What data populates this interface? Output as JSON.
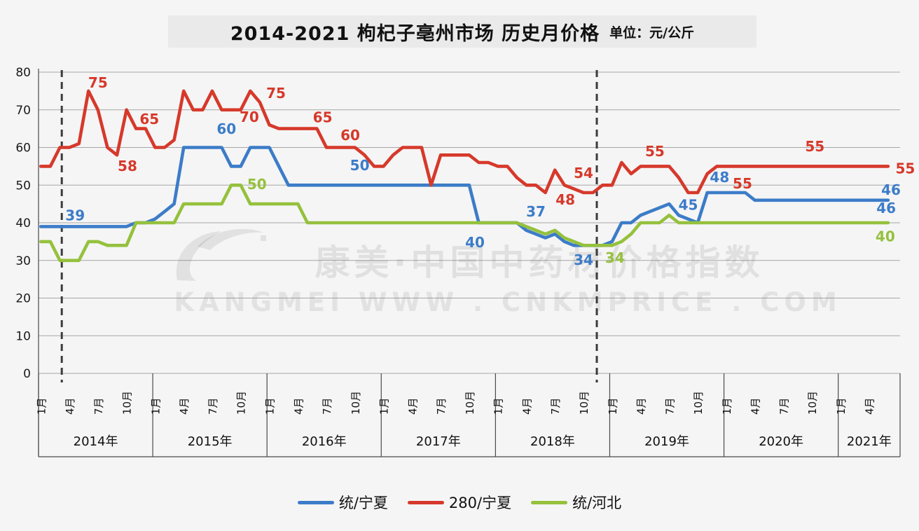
{
  "title": {
    "text": "2014-2021 枸杞子亳州市场 历史月价格",
    "unit": "单位：元/公斤"
  },
  "watermark": {
    "line1": "康美·中国中药材价格指数",
    "line2": "KANGMEI WWW . CNKMPRICE . COM"
  },
  "legend": [
    {
      "label": "统/宁夏",
      "color": "#3C7CC8"
    },
    {
      "label": "280/宁夏",
      "color": "#D6392B"
    },
    {
      "label": "统/河北",
      "color": "#95C13D"
    }
  ],
  "chart_data": {
    "type": "line",
    "title": "2014-2021 枸杞子亳州市场 历史月价格",
    "unit": "元/公斤",
    "grid": "horizontal",
    "legend_position": "bottom",
    "y_axis": {
      "min": 0,
      "max": 80,
      "step": 10
    },
    "x_axis": {
      "start": "2014-01",
      "end": "2021-06",
      "years": [
        {
          "label": "2014年",
          "months": [
            "1月",
            "4月",
            "7月",
            "10月"
          ]
        },
        {
          "label": "2015年",
          "months": [
            "1月",
            "4月",
            "7月",
            "10月"
          ]
        },
        {
          "label": "2016年",
          "months": [
            "1月",
            "4月",
            "7月",
            "10月"
          ]
        },
        {
          "label": "2017年",
          "months": [
            "1月",
            "4月",
            "7月",
            "10月"
          ]
        },
        {
          "label": "2018年",
          "months": [
            "1月",
            "4月",
            "7月",
            "10月"
          ]
        },
        {
          "label": "2019年",
          "months": [
            "1月",
            "4月",
            "7月",
            "10月"
          ]
        },
        {
          "label": "2020年",
          "months": [
            "1月",
            "4月",
            "7月",
            "10月"
          ]
        },
        {
          "label": "2021年",
          "months": [
            "1月",
            "4月"
          ]
        }
      ]
    },
    "reference_lines": [
      {
        "month_index": 2.2
      },
      {
        "month_index": 58.4
      }
    ],
    "series": [
      {
        "name": "统/宁夏",
        "color": "#3C7CC8",
        "values": [
          39,
          39,
          39,
          39,
          39,
          39,
          39,
          39,
          39,
          39,
          40,
          40,
          41,
          43,
          45,
          60,
          60,
          60,
          60,
          60,
          55,
          55,
          60,
          60,
          60,
          55,
          50,
          50,
          50,
          50,
          50,
          50,
          50,
          50,
          50,
          50,
          50,
          50,
          50,
          50,
          50,
          50,
          50,
          50,
          50,
          50,
          40,
          40,
          40,
          40,
          40,
          38,
          37,
          36,
          37,
          35,
          34,
          34,
          34,
          34,
          35,
          40,
          40,
          42,
          43,
          44,
          45,
          42,
          41,
          40,
          48,
          48,
          48,
          48,
          48,
          46,
          46,
          46,
          46,
          46,
          46,
          46,
          46,
          46,
          46,
          46,
          46,
          46,
          46,
          46
        ]
      },
      {
        "name": "280/宁夏",
        "color": "#D6392B",
        "values": [
          55,
          55,
          60,
          60,
          61,
          75,
          70,
          60,
          58,
          70,
          65,
          65,
          60,
          60,
          62,
          75,
          70,
          70,
          75,
          70,
          70,
          70,
          75,
          72,
          66,
          65,
          65,
          65,
          65,
          65,
          60,
          60,
          60,
          60,
          58,
          55,
          55,
          58,
          60,
          60,
          60,
          50,
          58,
          58,
          58,
          58,
          56,
          56,
          55,
          55,
          52,
          50,
          50,
          48,
          54,
          50,
          49,
          48,
          48,
          50,
          50,
          56,
          53,
          55,
          55,
          55,
          55,
          52,
          48,
          48,
          53,
          55,
          55,
          55,
          55,
          55,
          55,
          55,
          55,
          55,
          55,
          55,
          55,
          55,
          55,
          55,
          55,
          55,
          55,
          55
        ]
      },
      {
        "name": "统/河北",
        "color": "#95C13D",
        "values": [
          35,
          35,
          30,
          30,
          30,
          35,
          35,
          34,
          34,
          34,
          40,
          40,
          40,
          40,
          40,
          45,
          45,
          45,
          45,
          45,
          50,
          50,
          45,
          45,
          45,
          45,
          45,
          45,
          40,
          40,
          40,
          40,
          40,
          40,
          40,
          40,
          40,
          40,
          40,
          40,
          40,
          40,
          40,
          40,
          40,
          40,
          40,
          40,
          40,
          40,
          40,
          39,
          38,
          37,
          38,
          36,
          35,
          34,
          34,
          34,
          34,
          35,
          37,
          40,
          40,
          40,
          42,
          40,
          40,
          40,
          40,
          40,
          40,
          40,
          40,
          40,
          40,
          40,
          40,
          40,
          40,
          40,
          40,
          40,
          40,
          40,
          40,
          40,
          40,
          40
        ]
      }
    ],
    "point_labels": [
      {
        "text": "39",
        "m": 3.6,
        "v": 42.0,
        "color": "#3C7CC8"
      },
      {
        "text": "75",
        "m": 6.0,
        "v": 77.2,
        "color": "#D6392B"
      },
      {
        "text": "58",
        "m": 9.1,
        "v": 55.1,
        "color": "#D6392B"
      },
      {
        "text": "65",
        "m": 11.4,
        "v": 67.5,
        "color": "#D6392B"
      },
      {
        "text": "60",
        "m": 19.5,
        "v": 64.9,
        "color": "#3C7CC8"
      },
      {
        "text": "70",
        "m": 21.9,
        "v": 68.1,
        "color": "#D6392B"
      },
      {
        "text": "50",
        "m": 22.7,
        "v": 50.2,
        "color": "#95C13D"
      },
      {
        "text": "75",
        "m": 24.7,
        "v": 74.4,
        "color": "#D6392B"
      },
      {
        "text": "65",
        "m": 29.6,
        "v": 68.0,
        "color": "#D6392B"
      },
      {
        "text": "60",
        "m": 32.5,
        "v": 63.3,
        "color": "#D6392B"
      },
      {
        "text": "50",
        "m": 33.5,
        "v": 55.3,
        "color": "#3C7CC8"
      },
      {
        "text": "40",
        "m": 45.6,
        "v": 34.8,
        "color": "#3C7CC8"
      },
      {
        "text": "37",
        "m": 52.0,
        "v": 43.0,
        "color": "#3C7CC8"
      },
      {
        "text": "48",
        "m": 55.1,
        "v": 46.1,
        "color": "#D6392B"
      },
      {
        "text": "54",
        "m": 57.0,
        "v": 53.2,
        "color": "#D6392B"
      },
      {
        "text": "34",
        "m": 57.0,
        "v": 30.1,
        "color": "#3C7CC8"
      },
      {
        "text": "34",
        "m": 60.3,
        "v": 30.7,
        "color": "#95C13D"
      },
      {
        "text": "55",
        "m": 64.5,
        "v": 59.0,
        "color": "#D6392B"
      },
      {
        "text": "45",
        "m": 68.0,
        "v": 44.7,
        "color": "#3C7CC8"
      },
      {
        "text": "48",
        "m": 71.3,
        "v": 52.1,
        "color": "#3C7CC8"
      },
      {
        "text": "55",
        "m": 73.7,
        "v": 50.4,
        "color": "#D6392B"
      },
      {
        "text": "55",
        "m": 81.3,
        "v": 60.3,
        "color": "#D6392B"
      },
      {
        "text": "55",
        "m": 90.8,
        "v": 54.4,
        "color": "#D6392B"
      },
      {
        "text": "46",
        "m": 89.3,
        "v": 48.7,
        "color": "#3C7CC8"
      },
      {
        "text": "46",
        "m": 88.8,
        "v": 43.9,
        "color": "#3C7CC8"
      },
      {
        "text": "40",
        "m": 88.7,
        "v": 36.4,
        "color": "#95C13D"
      }
    ]
  }
}
